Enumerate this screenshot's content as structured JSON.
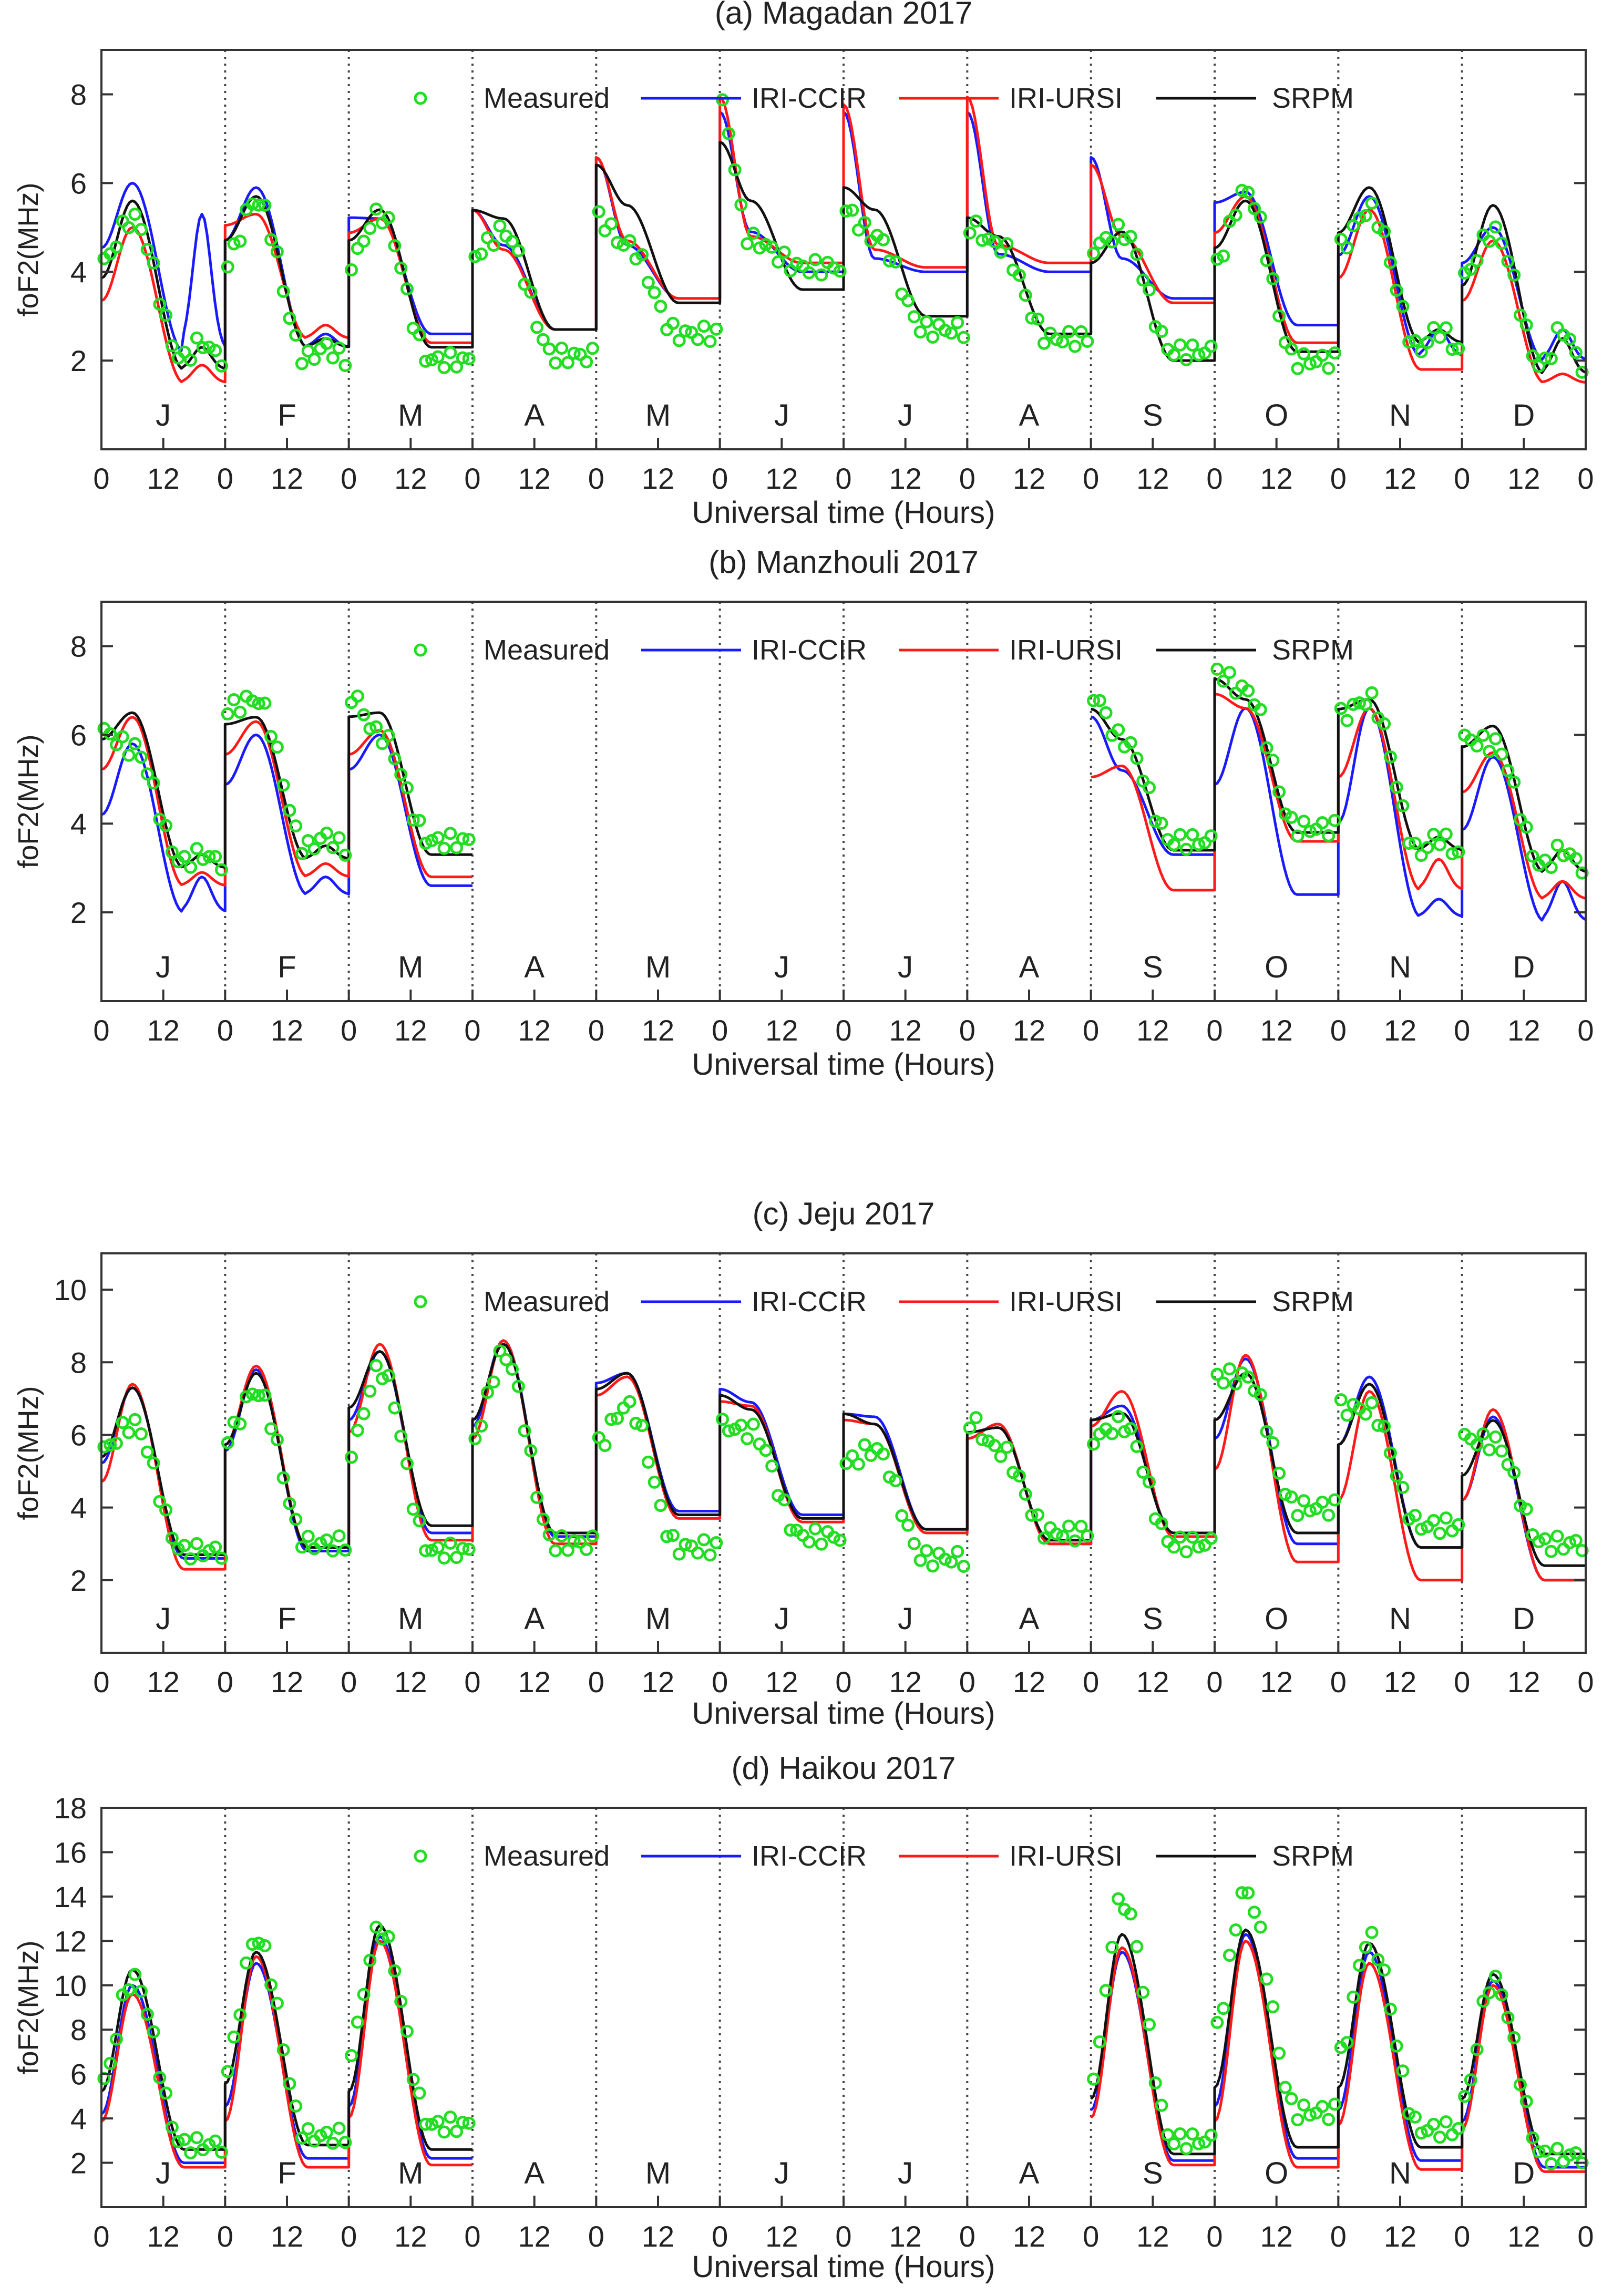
{
  "figure": {
    "background": "#ffffff"
  },
  "colors": {
    "measured": "#22dd22",
    "iri_ccir": "#1a1aff",
    "iri_ursi": "#ff1a1a",
    "srpm": "#111111",
    "axis": "#333333"
  },
  "months": [
    "J",
    "F",
    "M",
    "A",
    "M",
    "J",
    "J",
    "A",
    "S",
    "O",
    "N",
    "D"
  ],
  "chart_data": [
    {
      "type": "line",
      "title": "(a) Magadan 2017",
      "xlabel": "Universal time (Hours)",
      "ylabel": "foF2(MHz)",
      "ylim": [
        0,
        9
      ],
      "yticks": [
        "2",
        "4",
        "6",
        "8"
      ],
      "xticks": [
        "0",
        "12",
        "0",
        "12",
        "0",
        "12",
        "0",
        "12",
        "0",
        "12",
        "0",
        "12",
        "0",
        "12",
        "0",
        "12",
        "0",
        "12",
        "0",
        "12",
        "0",
        "12",
        "0",
        "12",
        "0"
      ],
      "legend": [
        "Measured",
        "IRI-CCIR",
        "IRI-URSI",
        "SRPM"
      ],
      "grid": "vertical dotted month separators",
      "months_present": [
        1,
        1,
        1,
        1,
        1,
        1,
        1,
        1,
        1,
        1,
        1,
        1
      ],
      "series": [
        {
          "name": "IRI-CCIR",
          "night": [
            2.2,
            2.3,
            2.6,
            2.7,
            3.4,
            4.0,
            4.0,
            4.0,
            3.4,
            2.8,
            2.1,
            2.0
          ],
          "peak": [
            6.0,
            5.9,
            5.2,
            4.6,
            4.6,
            4.9,
            4.3,
            4.4,
            4.3,
            5.8,
            5.7,
            5.0
          ],
          "nightbump": [
            3.1,
            0.3,
            0,
            0,
            0,
            0,
            0,
            0,
            0,
            0,
            0.6,
            0.7
          ]
        },
        {
          "name": "IRI-URSI",
          "night": [
            1.5,
            2.5,
            2.4,
            2.7,
            3.4,
            4.2,
            4.1,
            4.2,
            3.3,
            2.4,
            1.8,
            1.5
          ],
          "peak": [
            5.0,
            5.3,
            5.2,
            4.5,
            4.7,
            4.8,
            4.5,
            4.6,
            4.8,
            5.7,
            5.4,
            4.7
          ],
          "nightbump": [
            0.4,
            0.3,
            0,
            0,
            0,
            0,
            0,
            0,
            0,
            0,
            0,
            0.2
          ]
        },
        {
          "name": "SRPM",
          "night": [
            1.8,
            2.3,
            2.3,
            2.7,
            3.3,
            3.6,
            3.0,
            2.6,
            2.0,
            2.2,
            2.4,
            1.7
          ],
          "peak": [
            5.6,
            5.7,
            5.4,
            5.2,
            5.5,
            5.6,
            5.4,
            4.8,
            4.9,
            5.6,
            5.9,
            5.5
          ],
          "nightbump": [
            0.5,
            0.2,
            0,
            0,
            0,
            0,
            0,
            0,
            0,
            0,
            0.3,
            0.8
          ]
        },
        {
          "name": "Measured",
          "night": [
            2.0,
            2.0,
            2.0,
            2.1,
            2.6,
            4.1,
            2.7,
            2.5,
            2.2,
            2.0,
            2.2,
            1.8
          ],
          "peak": [
            5.2,
            5.6,
            5.3,
            4.9,
            4.6,
            4.7,
            4.8,
            4.6,
            4.9,
            5.8,
            5.4,
            4.9
          ],
          "nightbump": [
            0.4,
            0.3,
            0,
            0,
            0,
            0,
            0,
            0,
            0,
            0,
            0.5,
            0.9
          ]
        }
      ]
    },
    {
      "type": "line",
      "title": "(b) Manzhouli 2017",
      "xlabel": "Universal time (Hours)",
      "ylabel": "foF2(MHz)",
      "ylim": [
        0,
        9
      ],
      "yticks": [
        "2",
        "4",
        "6",
        "8"
      ],
      "xticks": [
        "0",
        "12",
        "0",
        "12",
        "0",
        "12",
        "0",
        "12",
        "0",
        "12",
        "0",
        "12",
        "0",
        "12",
        "0",
        "12",
        "0",
        "12",
        "0",
        "12",
        "0",
        "12",
        "0",
        "12",
        "0"
      ],
      "legend": [
        "Measured",
        "IRI-CCIR",
        "IRI-URSI",
        "SRPM"
      ],
      "grid": "vertical dotted month separators",
      "months_present": [
        1,
        1,
        1,
        0,
        0,
        0,
        0,
        0,
        1,
        1,
        1,
        1
      ],
      "series": [
        {
          "name": "IRI-CCIR",
          "night": [
            2.0,
            2.4,
            2.6,
            0,
            0,
            0,
            0,
            0,
            3.3,
            2.4,
            1.9,
            1.8
          ],
          "peak": [
            5.8,
            6.0,
            6.0,
            0,
            0,
            0,
            0,
            0,
            5.2,
            6.6,
            6.6,
            5.5
          ],
          "nightbump": [
            0.8,
            0.4,
            0,
            0,
            0,
            0,
            0,
            0,
            0,
            0,
            0.4,
            0.9
          ]
        },
        {
          "name": "IRI-URSI",
          "night": [
            2.6,
            2.8,
            2.8,
            0,
            0,
            0,
            0,
            0,
            2.5,
            3.6,
            2.5,
            2.3
          ],
          "peak": [
            6.4,
            6.3,
            6.1,
            0,
            0,
            0,
            0,
            0,
            5.3,
            6.6,
            6.6,
            5.6
          ],
          "nightbump": [
            0.3,
            0.3,
            0,
            0,
            0,
            0,
            0,
            0,
            0,
            0,
            0.7,
            0.4
          ]
        },
        {
          "name": "SRPM",
          "night": [
            3.0,
            3.2,
            3.3,
            0,
            0,
            0,
            0,
            0,
            3.4,
            3.8,
            3.4,
            2.9
          ],
          "peak": [
            6.5,
            6.4,
            6.5,
            0,
            0,
            0,
            0,
            0,
            5.9,
            6.8,
            6.8,
            6.2
          ],
          "nightbump": [
            0.3,
            0.3,
            0,
            0,
            0,
            0,
            0,
            0,
            0,
            0,
            0.3,
            0.5
          ]
        },
        {
          "name": "Measured",
          "night": [
            3.1,
            3.4,
            3.6,
            0,
            0,
            0,
            0,
            0,
            3.6,
            3.9,
            3.3,
            3.0
          ],
          "peak": [
            5.7,
            6.8,
            6.0,
            0,
            0,
            0,
            0,
            0,
            5.9,
            7.0,
            6.8,
            5.8
          ],
          "nightbump": [
            0.2,
            0.3,
            0,
            0,
            0,
            0,
            0,
            0,
            0,
            0,
            0.4,
            0.4
          ]
        }
      ]
    },
    {
      "type": "line",
      "title": "(c) Jeju 2017",
      "xlabel": "Universal time (Hours)",
      "ylabel": "foF2(MHz)",
      "ylim": [
        0,
        11
      ],
      "yticks": [
        "2",
        "4",
        "6",
        "8",
        "10"
      ],
      "xticks": [
        "0",
        "12",
        "0",
        "12",
        "0",
        "12",
        "0",
        "12",
        "0",
        "12",
        "0",
        "12",
        "0",
        "12",
        "0",
        "12",
        "0",
        "12",
        "0",
        "12",
        "0",
        "12",
        "0",
        "12",
        "0"
      ],
      "legend": [
        "Measured",
        "IRI-CCIR",
        "IRI-URSI",
        "SRPM"
      ],
      "grid": "vertical dotted month separators",
      "months_present": [
        1,
        1,
        1,
        1,
        1,
        1,
        1,
        1,
        1,
        1,
        1,
        1
      ],
      "series": [
        {
          "name": "IRI-CCIR",
          "night": [
            2.6,
            2.8,
            3.3,
            3.2,
            3.9,
            3.8,
            3.4,
            3.0,
            3.3,
            3.0,
            2.9,
            2.0
          ],
          "peak": [
            7.3,
            7.8,
            8.3,
            8.6,
            7.7,
            6.9,
            6.5,
            6.3,
            6.8,
            8.1,
            7.6,
            6.5
          ],
          "nightbump": [
            0,
            0,
            0,
            0,
            0,
            0,
            0,
            0,
            0,
            0,
            0,
            0
          ]
        },
        {
          "name": "IRI-URSI",
          "night": [
            2.3,
            2.9,
            3.1,
            3.0,
            3.7,
            3.6,
            3.3,
            3.0,
            3.2,
            2.5,
            2.0,
            2.0
          ],
          "peak": [
            7.4,
            7.9,
            8.5,
            8.6,
            7.6,
            6.8,
            6.3,
            6.3,
            7.2,
            8.2,
            7.2,
            6.7
          ],
          "nightbump": [
            0,
            0,
            0,
            0,
            0,
            0,
            0,
            0,
            0,
            0,
            0,
            0
          ]
        },
        {
          "name": "SRPM",
          "night": [
            2.7,
            2.9,
            3.5,
            3.3,
            3.8,
            3.7,
            3.4,
            3.1,
            3.3,
            3.3,
            2.9,
            2.4
          ],
          "peak": [
            7.3,
            7.7,
            8.3,
            8.5,
            7.7,
            6.7,
            6.3,
            6.2,
            6.6,
            7.7,
            7.4,
            6.4
          ],
          "nightbump": [
            0,
            0,
            0,
            0,
            0,
            0,
            0,
            0,
            0,
            0,
            0,
            0
          ]
        },
        {
          "name": "Measured",
          "night": [
            2.8,
            3.0,
            2.8,
            3.0,
            2.9,
            3.2,
            2.6,
            3.3,
            3.0,
            4.0,
            3.5,
            3.0
          ],
          "peak": [
            6.3,
            7.2,
            7.8,
            8.2,
            6.8,
            6.1,
            5.6,
            5.6,
            6.3,
            7.6,
            6.7,
            5.8
          ],
          "nightbump": [
            0,
            0,
            0,
            0,
            0,
            0,
            0,
            0,
            0,
            0,
            0,
            0
          ]
        }
      ]
    },
    {
      "type": "line",
      "title": "(d) Haikou 2017",
      "xlabel": "Universal time (Hours)",
      "ylabel": "foF2(MHz)",
      "ylim": [
        0,
        18
      ],
      "yticks": [
        "2",
        "4",
        "6",
        "8",
        "10",
        "12",
        "14",
        "16",
        "18"
      ],
      "xticks": [
        "0",
        "12",
        "0",
        "12",
        "0",
        "12",
        "0",
        "12",
        "0",
        "12",
        "0",
        "12",
        "0",
        "12",
        "0",
        "12",
        "0",
        "12",
        "0",
        "12",
        "0",
        "12",
        "0",
        "12",
        "0"
      ],
      "legend": [
        "Measured",
        "IRI-CCIR",
        "IRI-URSI",
        "SRPM"
      ],
      "grid": "vertical dotted month separators",
      "months_present": [
        1,
        1,
        1,
        0,
        0,
        0,
        0,
        0,
        1,
        1,
        1,
        1
      ],
      "series": [
        {
          "name": "IRI-CCIR",
          "night": [
            2.0,
            2.2,
            2.2,
            0,
            0,
            0,
            0,
            0,
            2.1,
            2.2,
            2.1,
            1.8
          ],
          "peak": [
            10.0,
            11.0,
            12.2,
            0,
            0,
            0,
            0,
            0,
            11.5,
            12.3,
            11.5,
            10.2
          ],
          "nightbump": [
            0,
            0,
            0,
            0,
            0,
            0,
            0,
            0,
            0,
            0,
            0,
            0
          ]
        },
        {
          "name": "IRI-URSI",
          "night": [
            1.8,
            1.8,
            1.9,
            0,
            0,
            0,
            0,
            0,
            1.9,
            1.8,
            1.7,
            1.6
          ],
          "peak": [
            9.6,
            11.3,
            12.0,
            0,
            0,
            0,
            0,
            0,
            11.7,
            12.0,
            11.0,
            10.0
          ],
          "nightbump": [
            0,
            0,
            0,
            0,
            0,
            0,
            0,
            0,
            0,
            0,
            0,
            0
          ]
        },
        {
          "name": "SRPM",
          "night": [
            2.6,
            2.8,
            2.6,
            0,
            0,
            0,
            0,
            0,
            2.4,
            2.7,
            2.7,
            2.4
          ],
          "peak": [
            10.7,
            11.5,
            12.7,
            0,
            0,
            0,
            0,
            0,
            12.3,
            12.5,
            11.9,
            10.5
          ],
          "nightbump": [
            0,
            0,
            0,
            0,
            0,
            0,
            0,
            0,
            0,
            0,
            0,
            0
          ]
        },
        {
          "name": "Measured",
          "night": [
            2.8,
            3.2,
            3.7,
            0,
            0,
            0,
            0,
            0,
            3.0,
            4.3,
            3.5,
            2.3
          ],
          "peak": [
            10.3,
            12.1,
            12.5,
            0,
            0,
            0,
            0,
            0,
            13.8,
            14.2,
            12.1,
            10.2
          ],
          "nightbump": [
            0,
            0,
            0,
            0,
            0,
            0,
            0,
            0,
            0,
            0,
            0,
            0
          ]
        }
      ]
    }
  ]
}
